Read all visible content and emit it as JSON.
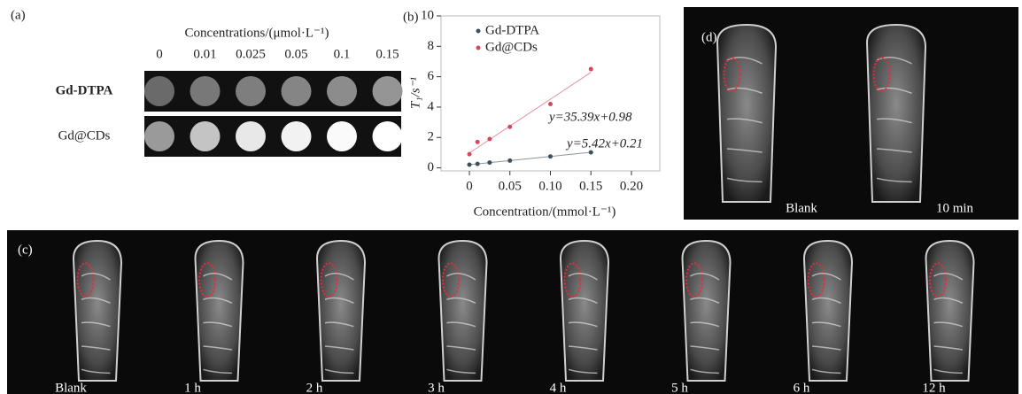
{
  "panel_a": {
    "label": "(a)",
    "header": "Concentrations/(μmol·L⁻¹)",
    "concentrations": [
      "0",
      "0.01",
      "0.025",
      "0.05",
      "0.1",
      "0.15"
    ],
    "rows": [
      "Gd-DTPA",
      "Gd@CDs"
    ]
  },
  "chart_data": {
    "type": "scatter",
    "panel_label": "(b)",
    "y_label": "T₁/s⁻¹",
    "x_label": "Concentration/(mmol·L⁻¹)",
    "x": [
      0,
      0.01,
      0.025,
      0.05,
      0.1,
      0.15
    ],
    "series": [
      {
        "name": "Gd-DTPA",
        "color": "#3b4f5c",
        "values": [
          0.21,
          0.26,
          0.35,
          0.48,
          0.75,
          1.02
        ]
      },
      {
        "name": "Gd@CDs",
        "color": "#d9465a",
        "values": [
          0.9,
          1.7,
          1.9,
          2.7,
          4.2,
          6.5
        ]
      }
    ],
    "fits": [
      {
        "label": "y=5.42x+0.21",
        "slope": 5.42,
        "intercept": 0.21,
        "color": "#222222"
      },
      {
        "label": "y=35.39x+0.98",
        "slope": 35.39,
        "intercept": 0.98,
        "color": "#d9465a"
      }
    ],
    "xlim": [
      -0.035,
      0.235
    ],
    "ylim": [
      -0.2,
      10
    ],
    "xticks": [
      0,
      0.05,
      {
        "value": 0.1,
        "label": "0.10"
      },
      0.15,
      {
        "value": 0.2,
        "label": "0.20"
      }
    ],
    "yticks": [
      0,
      2,
      4,
      6,
      8,
      10
    ]
  },
  "panel_d": {
    "label": "(d)",
    "captions": [
      "Blank",
      "10 min"
    ]
  },
  "panel_c": {
    "label": "(c)",
    "captions": [
      "Blank",
      "1 h",
      "2 h",
      "3 h",
      "4 h",
      "5 h",
      "6 h",
      "12 h"
    ]
  }
}
